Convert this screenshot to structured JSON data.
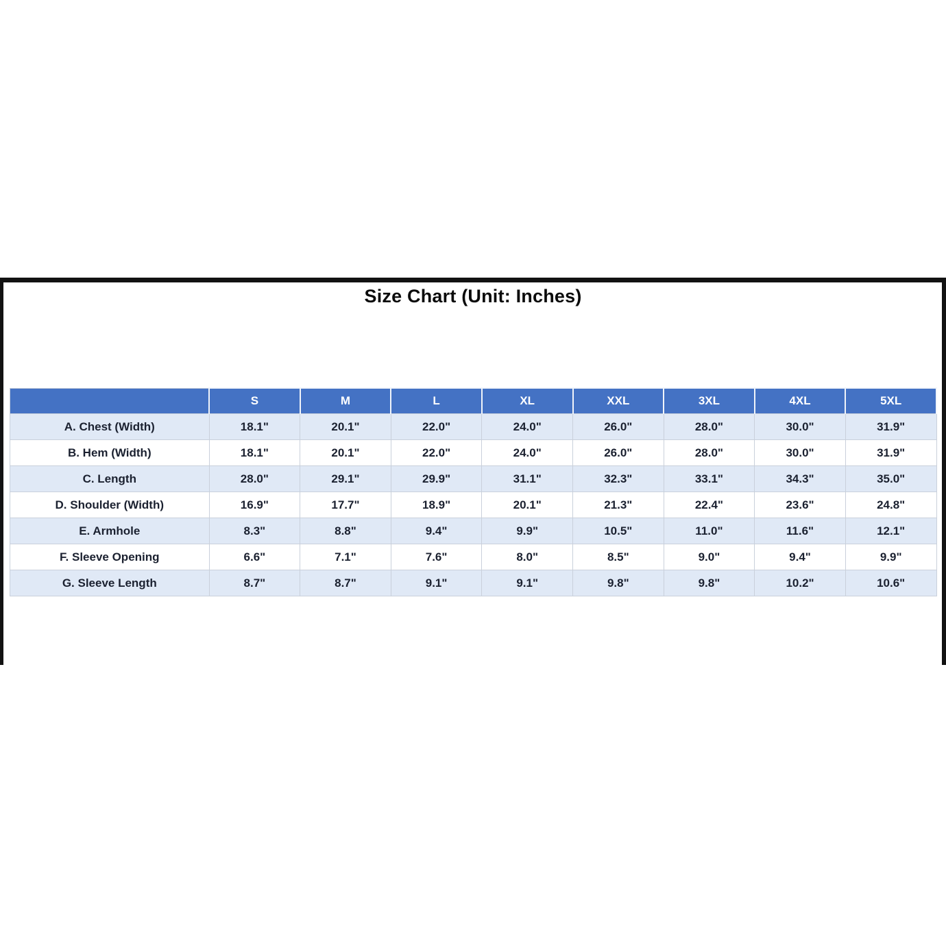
{
  "page": {
    "background_color": "#FFFFFF",
    "frame_border_color": "#121212"
  },
  "colors": {
    "header_bg": "#4472C4",
    "header_text": "#FFFFFF",
    "row_alt_bg": "#E0E9F6",
    "row_bg": "#FFFFFF",
    "cell_text": "#1B2130",
    "grid_line": "#C9D0DB"
  },
  "chart_data": {
    "type": "table",
    "title": "Size Chart (Unit: Inches)",
    "corner_label": "",
    "columns": [
      "S",
      "M",
      "L",
      "XL",
      "XXL",
      "3XL",
      "4XL",
      "5XL"
    ],
    "rows": [
      {
        "label": "A. Chest (Width)",
        "values": [
          "18.1\"",
          "20.1\"",
          "22.0\"",
          "24.0\"",
          "26.0\"",
          "28.0\"",
          "30.0\"",
          "31.9\""
        ]
      },
      {
        "label": "B. Hem (Width)",
        "values": [
          "18.1\"",
          "20.1\"",
          "22.0\"",
          "24.0\"",
          "26.0\"",
          "28.0\"",
          "30.0\"",
          "31.9\""
        ]
      },
      {
        "label": "C. Length",
        "values": [
          "28.0\"",
          "29.1\"",
          "29.9\"",
          "31.1\"",
          "32.3\"",
          "33.1\"",
          "34.3\"",
          "35.0\""
        ]
      },
      {
        "label": "D. Shoulder (Width)",
        "values": [
          "16.9\"",
          "17.7\"",
          "18.9\"",
          "20.1\"",
          "21.3\"",
          "22.4\"",
          "23.6\"",
          "24.8\""
        ]
      },
      {
        "label": "E. Armhole",
        "values": [
          "8.3\"",
          "8.8\"",
          "9.4\"",
          "9.9\"",
          "10.5\"",
          "11.0\"",
          "11.6\"",
          "12.1\""
        ]
      },
      {
        "label": "F. Sleeve Opening",
        "values": [
          "6.6\"",
          "7.1\"",
          "7.6\"",
          "8.0\"",
          "8.5\"",
          "9.0\"",
          "9.4\"",
          "9.9\""
        ]
      },
      {
        "label": "G. Sleeve Length",
        "values": [
          "8.7\"",
          "8.7\"",
          "9.1\"",
          "9.1\"",
          "9.8\"",
          "9.8\"",
          "10.2\"",
          "10.6\""
        ]
      }
    ],
    "layout": {
      "grid": true,
      "banded_rows": true,
      "header_position": "top"
    }
  }
}
